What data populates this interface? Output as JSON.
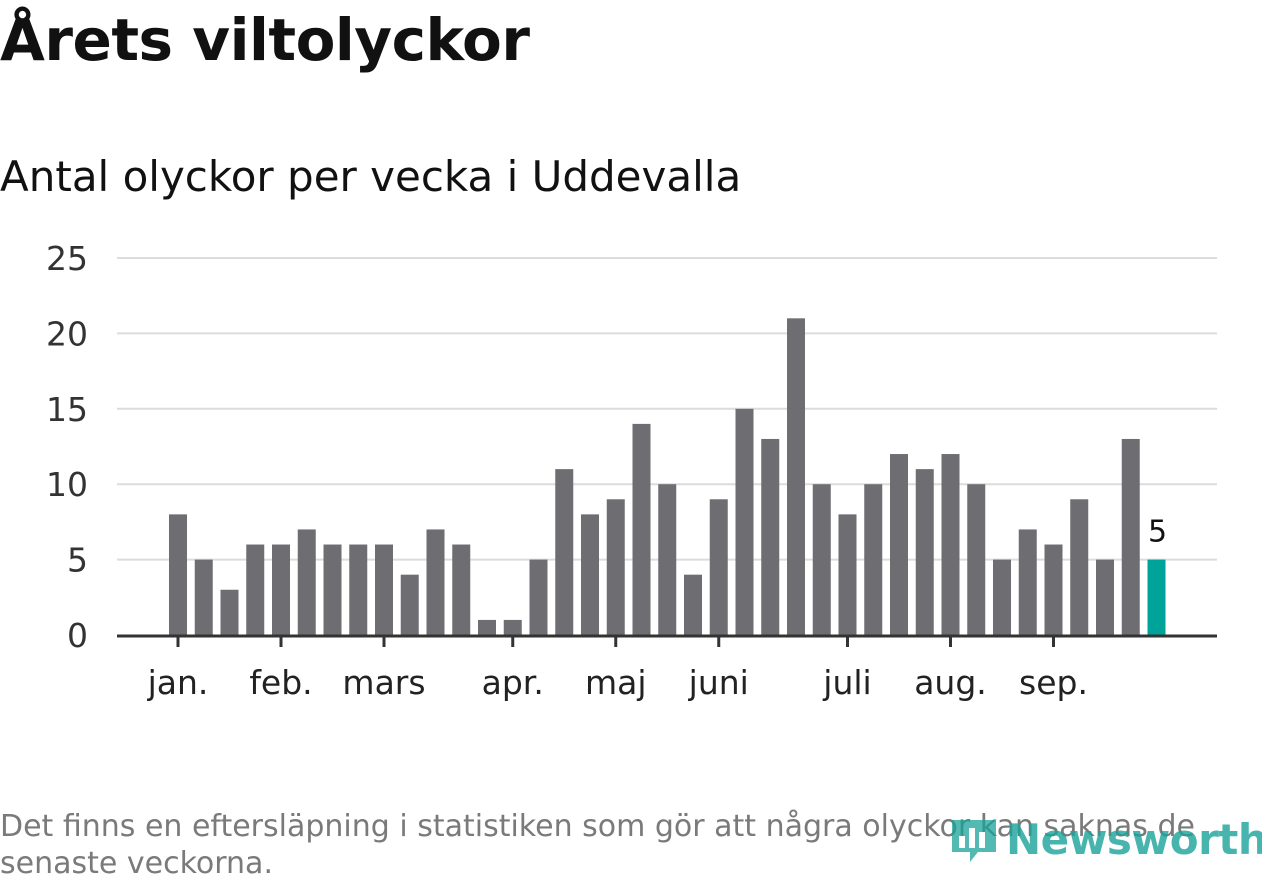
{
  "title": "Årets viltolyckor",
  "subtitle": "Antal olyckor per vecka i Uddevalla",
  "note": "Det finns en eftersläpning i statistiken som gör att några olyckor kan saknas de senaste veckorna.",
  "logo": {
    "text": "Newsworthy",
    "icon": "bar-chart-icon"
  },
  "colors": {
    "bar": "#6e6d72",
    "highlight": "#00a39a",
    "grid": "#dcdcdc",
    "axis": "#333333"
  },
  "chart_data": {
    "type": "bar",
    "title": "Antal olyckor per vecka i Uddevalla",
    "xlabel": "",
    "ylabel": "",
    "ylim": [
      0,
      25
    ],
    "yticks": [
      0,
      5,
      10,
      15,
      20,
      25
    ],
    "weeks": [
      1,
      2,
      3,
      4,
      5,
      6,
      7,
      8,
      9,
      10,
      11,
      12,
      13,
      14,
      15,
      16,
      17,
      18,
      19,
      20,
      21,
      22,
      23,
      24,
      25,
      26,
      27,
      28,
      29,
      30,
      31,
      32,
      33,
      34,
      35,
      36,
      37,
      38,
      39
    ],
    "values": [
      8,
      5,
      3,
      6,
      6,
      7,
      6,
      6,
      6,
      4,
      7,
      6,
      1,
      1,
      5,
      11,
      8,
      9,
      14,
      10,
      4,
      9,
      15,
      13,
      21,
      10,
      8,
      10,
      12,
      11,
      12,
      10,
      5,
      7,
      6,
      9,
      5,
      13,
      5
    ],
    "highlight_index": 38,
    "highlight_label": "5",
    "month_ticks": [
      {
        "label": "jan.",
        "week": 1
      },
      {
        "label": "feb.",
        "week": 5
      },
      {
        "label": "mars",
        "week": 9
      },
      {
        "label": "apr.",
        "week": 14
      },
      {
        "label": "maj",
        "week": 18
      },
      {
        "label": "juni",
        "week": 22
      },
      {
        "label": "juli",
        "week": 27
      },
      {
        "label": "aug.",
        "week": 31
      },
      {
        "label": "sep.",
        "week": 35
      }
    ]
  }
}
